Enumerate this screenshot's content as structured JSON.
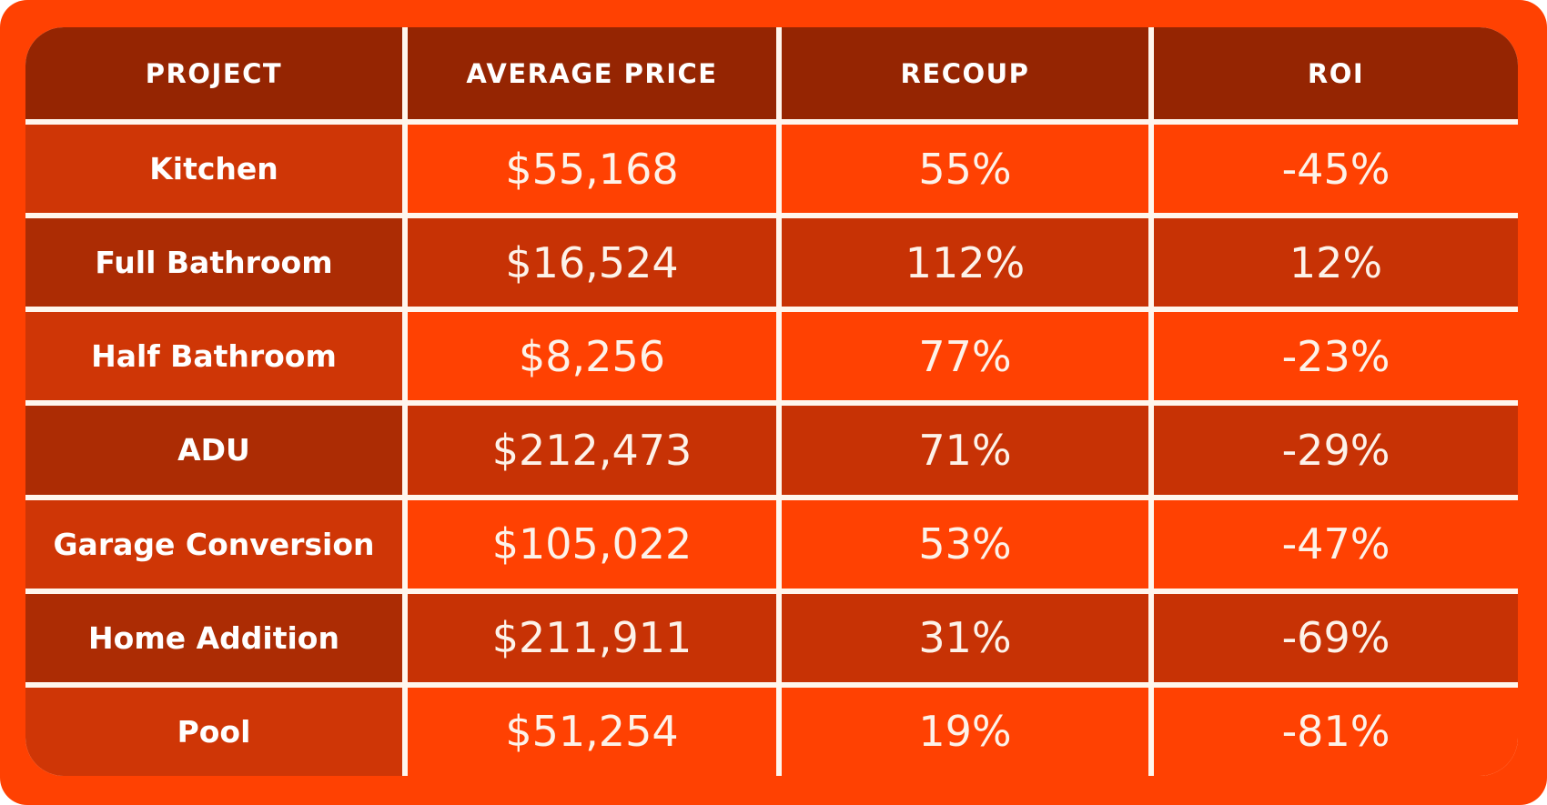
{
  "colors": {
    "canvas_background": "#FF4102",
    "header_cell": "#952502",
    "dark_project_cell": "#AC2C04",
    "medium_cell": "#CF3606",
    "medium_value_cell": "#C73205",
    "bright_cell": "#FF4102",
    "gridline": "#FFF6ED",
    "header_text": "#FFFFFF",
    "value_text": "#FDF2E9"
  },
  "chart_data": {
    "type": "table",
    "columns": [
      "PROJECT",
      "AVERAGE PRICE",
      "RECOUP",
      "ROI"
    ],
    "rows": [
      {
        "project": "Kitchen",
        "average_price": "$55,168",
        "recoup": "55%",
        "roi": "-45%"
      },
      {
        "project": "Full Bathroom",
        "average_price": "$16,524",
        "recoup": "112%",
        "roi": "12%"
      },
      {
        "project": "Half Bathroom",
        "average_price": "$8,256",
        "recoup": "77%",
        "roi": "-23%"
      },
      {
        "project": "ADU",
        "average_price": "$212,473",
        "recoup": "71%",
        "roi": "-29%"
      },
      {
        "project": "Garage Conversion",
        "average_price": "$105,022",
        "recoup": "53%",
        "roi": "-47%"
      },
      {
        "project": "Home Addition",
        "average_price": "$211,911",
        "recoup": "31%",
        "roi": "-69%"
      },
      {
        "project": "Pool",
        "average_price": "$51,254",
        "recoup": "19%",
        "roi": "-81%"
      }
    ]
  }
}
